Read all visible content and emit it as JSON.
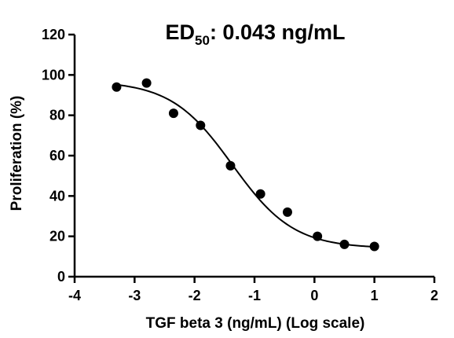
{
  "chart_data": {
    "type": "scatter",
    "title": {
      "prefix": "ED",
      "subscript": "50",
      "suffix": ": 0.043 ng/mL"
    },
    "xlabel": "TGF beta 3 (ng/mL) (Log scale)",
    "ylabel": "Proliferation (%)",
    "xlim": [
      -4,
      2
    ],
    "ylim": [
      0,
      120
    ],
    "xticks": [
      -4,
      -3,
      -2,
      -1,
      0,
      1,
      2
    ],
    "yticks": [
      0,
      20,
      40,
      60,
      80,
      100,
      120
    ],
    "grid": false,
    "points": [
      {
        "x": -3.3,
        "y": 94
      },
      {
        "x": -2.8,
        "y": 96
      },
      {
        "x": -2.35,
        "y": 81
      },
      {
        "x": -1.9,
        "y": 75
      },
      {
        "x": -1.4,
        "y": 55
      },
      {
        "x": -0.9,
        "y": 41
      },
      {
        "x": -0.45,
        "y": 32
      },
      {
        "x": 0.05,
        "y": 20
      },
      {
        "x": 0.5,
        "y": 16
      },
      {
        "x": 1.0,
        "y": 15
      }
    ],
    "fit_curve": {
      "model": "four-parameter logistic",
      "top": 97,
      "bottom": 14,
      "log_ec50": -1.37,
      "hill_slope": -0.85,
      "x_range": [
        -3.3,
        1.0
      ]
    },
    "colors": {
      "points": "#000000",
      "curve": "#000000",
      "axes": "#000000"
    }
  }
}
